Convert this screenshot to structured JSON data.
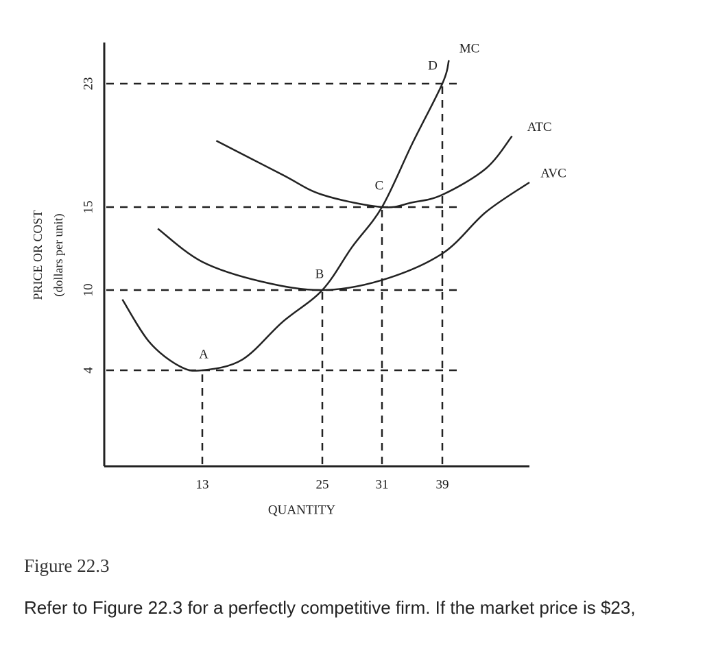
{
  "chart_data": {
    "type": "line",
    "xlabel": "QUANTITY",
    "ylabel": "PRICE OR COST",
    "ylabel_sub": "(dollars per unit)",
    "xlim": [
      0,
      43
    ],
    "ylim": [
      0,
      26
    ],
    "xticks": [
      13,
      25,
      31,
      39
    ],
    "yticks": [
      4,
      10,
      15,
      23
    ],
    "color": "#222222",
    "series": [
      {
        "name": "MC",
        "x": [
          2.4,
          6,
          10,
          13,
          17,
          21,
          25,
          28,
          31,
          35,
          39,
          39.3
        ],
        "values": [
          9.3,
          6.1,
          4.3,
          4,
          4.8,
          7.6,
          10,
          12.6,
          15,
          19.1,
          23,
          24.7
        ]
      },
      {
        "name": "ATC",
        "x": [
          14.4,
          21,
          25,
          31,
          35,
          39,
          41,
          42.2
        ],
        "values": [
          19.3,
          17.1,
          15.8,
          15,
          15.3,
          15.8,
          17.5,
          19.6
        ]
      },
      {
        "name": "AVC",
        "x": [
          7.1,
          13,
          19,
          25,
          31,
          39,
          41,
          43
        ],
        "values": [
          13.7,
          11.7,
          10.5,
          10,
          10.6,
          12.2,
          14.7,
          16.6
        ]
      }
    ],
    "points": [
      {
        "label": "A",
        "x": 13,
        "y": 4
      },
      {
        "label": "B",
        "x": 25,
        "y": 10
      },
      {
        "label": "C",
        "x": 31,
        "y": 15
      },
      {
        "label": "D",
        "x": 39,
        "y": 23
      }
    ]
  },
  "figure_caption": "Figure 22.3",
  "question": "Refer to Figure 22.3 for a perfectly competitive firm. If the market price is $23,"
}
